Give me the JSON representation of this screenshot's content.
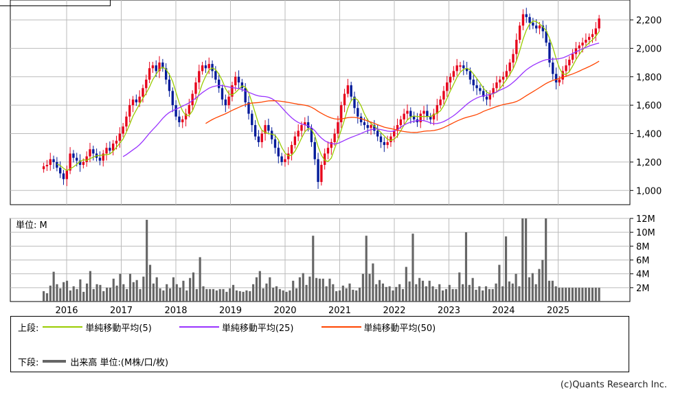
{
  "chart_data": [
    {
      "type": "candlestick",
      "panel": "price",
      "ylim": [
        900,
        2340
      ],
      "yticks": [
        "1,000",
        "1,200",
        "1,400",
        "1,600",
        "1,800",
        "2,000",
        "2,200"
      ],
      "ytick_values": [
        1000,
        1200,
        1400,
        1600,
        1800,
        2000,
        2200
      ],
      "x_labels": [
        "2016",
        "2017",
        "2018",
        "2019",
        "2020",
        "2021",
        "2022",
        "2023",
        "2024",
        "2025"
      ],
      "x_start": 2015.58,
      "x_end": 2025.75,
      "close_series": [
        1170,
        1180,
        1220,
        1200,
        1160,
        1120,
        1080,
        1140,
        1260,
        1230,
        1210,
        1180,
        1200,
        1240,
        1290,
        1260,
        1230,
        1210,
        1260,
        1300,
        1280,
        1330,
        1350,
        1400,
        1450,
        1520,
        1600,
        1640,
        1620,
        1660,
        1720,
        1780,
        1860,
        1880,
        1840,
        1900,
        1860,
        1780,
        1700,
        1600,
        1520,
        1480,
        1500,
        1540,
        1600,
        1680,
        1760,
        1840,
        1880,
        1860,
        1890,
        1840,
        1780,
        1720,
        1640,
        1600,
        1660,
        1740,
        1800,
        1760,
        1720,
        1620,
        1540,
        1460,
        1380,
        1340,
        1400,
        1460,
        1420,
        1360,
        1300,
        1240,
        1200,
        1220,
        1260,
        1320,
        1380,
        1420,
        1460,
        1480,
        1440,
        1340,
        1220,
        1060,
        1180,
        1260,
        1300,
        1340,
        1400,
        1480,
        1600,
        1680,
        1740,
        1660,
        1580,
        1520,
        1480,
        1460,
        1440,
        1460,
        1420,
        1380,
        1340,
        1320,
        1340,
        1380,
        1420,
        1460,
        1500,
        1540,
        1560,
        1520,
        1500,
        1480,
        1540,
        1560,
        1520,
        1500,
        1540,
        1600,
        1640,
        1700,
        1760,
        1800,
        1840,
        1880,
        1880,
        1860,
        1840,
        1780,
        1740,
        1720,
        1700,
        1660,
        1640,
        1680,
        1720,
        1760,
        1780,
        1800,
        1840,
        1900,
        1960,
        2060,
        2160,
        2240,
        2220,
        2180,
        2160,
        2140,
        2160,
        2120,
        2040,
        1900,
        1820,
        1760,
        1780,
        1840,
        1880,
        1920,
        1960,
        2000,
        2020,
        2040,
        2060,
        2080,
        2100,
        2140,
        2210
      ],
      "indicators": [
        {
          "name": "単純移動平均(5)",
          "period": 5,
          "color": "#99cc00"
        },
        {
          "name": "単純移動平均(25)",
          "period": 25,
          "color": "#9933ff"
        },
        {
          "name": "単純移動平均(50)",
          "period": 50,
          "color": "#ff4400"
        }
      ],
      "up_color": "#e6001a",
      "down_color": "#001a99"
    },
    {
      "type": "bar",
      "panel": "volume",
      "panel_label": "単位: M",
      "ylim": [
        0,
        12
      ],
      "yticks": [
        "2M",
        "4M",
        "6M",
        "8M",
        "10M",
        "12M"
      ],
      "ytick_values": [
        2,
        4,
        6,
        8,
        10,
        12
      ],
      "values": [
        1.5,
        1.2,
        2.3,
        4.3,
        2.5,
        1.9,
        2.8,
        3.0,
        1.6,
        2.2,
        1.8,
        3.2,
        1.4,
        2.6,
        4.4,
        1.8,
        2.5,
        2.4,
        1.5,
        2.0,
        2.0,
        3.3,
        2.3,
        4.0,
        2.5,
        1.8,
        4.0,
        2.8,
        3.1,
        1.8,
        3.6,
        11.8,
        5.3,
        2.6,
        3.5,
        1.9,
        1.6,
        2.5,
        1.9,
        3.5,
        2.5,
        2.0,
        3.0,
        1.6,
        3.4,
        4.2,
        1.8,
        6.4,
        2.2,
        1.8,
        1.8,
        1.8,
        1.6,
        1.8,
        1.8,
        1.4,
        1.9,
        2.4,
        1.6,
        1.5,
        1.4,
        1.6,
        1.5,
        2.5,
        3.5,
        4.4,
        1.9,
        2.6,
        3.5,
        2.0,
        2.2,
        1.8,
        1.6,
        1.4,
        1.6,
        3.0,
        1.9,
        3.5,
        4.1,
        2.4,
        3.6,
        9.5,
        3.4,
        3.3,
        3.3,
        2.2,
        3.3,
        2.5,
        1.5,
        1.6,
        2.3,
        1.9,
        2.6,
        1.7,
        1.6,
        2.0,
        4.0,
        9.5,
        4.0,
        5.5,
        2.5,
        3.1,
        2.6,
        2.1,
        2.2,
        1.6,
        2.1,
        2.5,
        1.8,
        5.0,
        2.9,
        9.8,
        2.5,
        3.4,
        3.0,
        2.2,
        3.0,
        2.2,
        1.8,
        2.5,
        1.6,
        1.8,
        2.4,
        1.8,
        1.8,
        4.2,
        2.5,
        10.0,
        2.4,
        3.4,
        1.7,
        2.2,
        1.6,
        2.2,
        1.8,
        1.8,
        2.6,
        5.3,
        2.2,
        9.4,
        2.9,
        2.6,
        4.0,
        2.2,
        12.0,
        12.0,
        3.5,
        4.1,
        2.5,
        4.7,
        6.0,
        12.0,
        3.0,
        3.0,
        2.2,
        2.0,
        2.0,
        2.0,
        2.0,
        2.0,
        2.0,
        2.0,
        2.0,
        2.0,
        2.0,
        2.0,
        2.0,
        2.0
      ],
      "bar_color": "#666666"
    }
  ],
  "legend": {
    "upper_label": "上段:",
    "lower_label": "下段:",
    "items": [
      {
        "name": "単純移動平均(5)",
        "color": "#99cc00"
      },
      {
        "name": "単純移動平均(25)",
        "color": "#9933ff"
      },
      {
        "name": "単純移動平均(50)",
        "color": "#ff4400"
      }
    ],
    "volume_item": "出来高 単位:(M株/口/枚)"
  },
  "copyright": "(c)Quants Research Inc."
}
